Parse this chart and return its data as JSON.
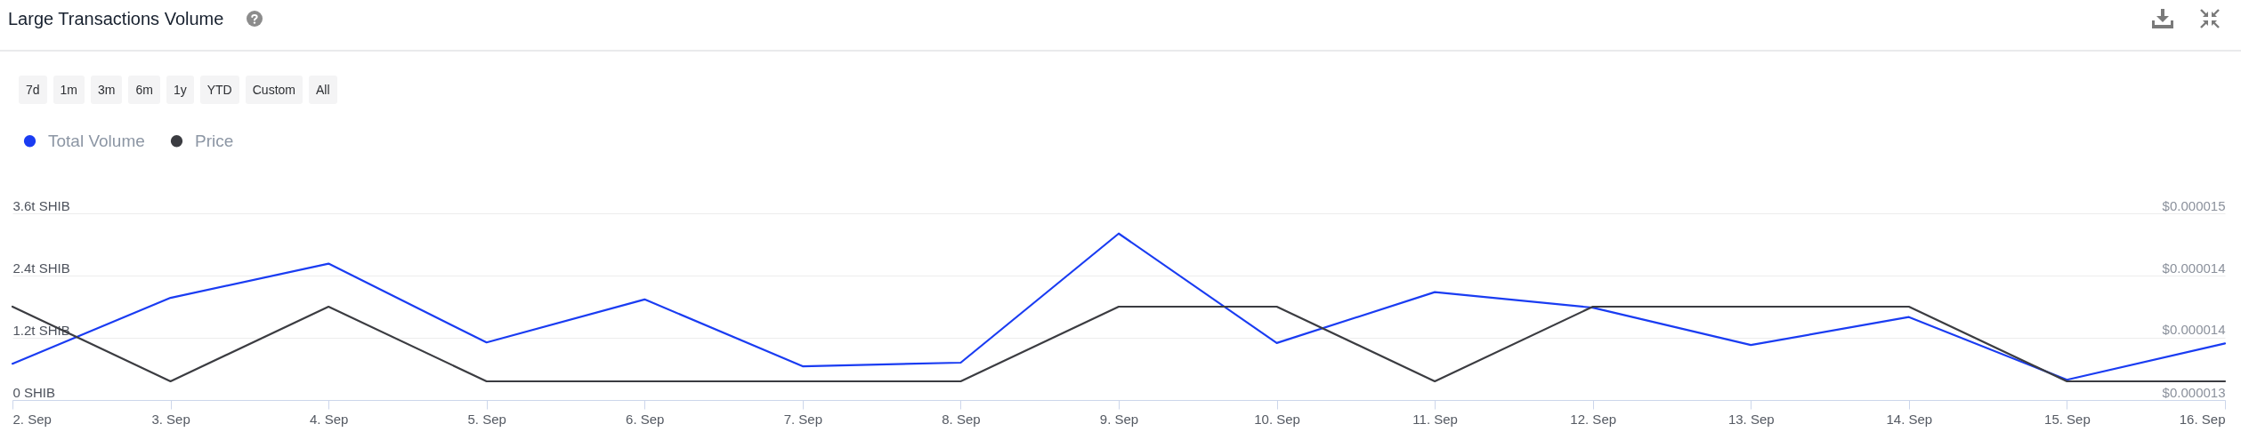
{
  "chart_data": {
    "type": "line",
    "title": "Large Transactions Volume",
    "annotations": [
      "7d",
      "1m",
      "3m",
      "6m",
      "1y",
      "YTD",
      "Custom",
      "All"
    ],
    "categories": [
      "2. Sep",
      "3. Sep",
      "4. Sep",
      "5. Sep",
      "6. Sep",
      "7. Sep",
      "8. Sep",
      "9. Sep",
      "10. Sep",
      "11. Sep",
      "12. Sep",
      "13. Sep",
      "14. Sep",
      "15. Sep",
      "16. Sep"
    ],
    "series": [
      {
        "name": "Total Volume",
        "color": "#1a3cf2",
        "values": [
          0.7,
          1.97,
          2.63,
          1.11,
          1.94,
          0.65,
          0.72,
          3.21,
          1.1,
          2.08,
          1.78,
          1.06,
          1.6,
          0.39,
          1.09
        ]
      },
      {
        "name": "Price",
        "color": "#3b3c41",
        "axis": "y2",
        "values": [
          1.4e-05,
          1.32e-05,
          1.4e-05,
          1.32e-05,
          1.32e-05,
          1.32e-05,
          1.32e-05,
          1.4e-05,
          1.4e-05,
          1.32e-05,
          1.4e-05,
          1.4e-05,
          1.4e-05,
          1.32e-05,
          1.32e-05
        ]
      }
    ],
    "ylim": [
      0,
      3.6
    ],
    "yticks": [
      {
        "value": 0,
        "label": "0 SHIB"
      },
      {
        "value": 1.2,
        "label": "1.2t SHIB"
      },
      {
        "value": 2.4,
        "label": "2.4t SHIB"
      },
      {
        "value": 3.6,
        "label": "3.6t SHIB"
      }
    ],
    "y2lim": [
      1.3e-05,
      1.5e-05
    ],
    "y2ticks": [
      {
        "value": 1.3e-05,
        "label": "$0.000013"
      },
      {
        "value": 1.36667e-05,
        "label": "$0.000014"
      },
      {
        "value": 1.43333e-05,
        "label": "$0.000014"
      },
      {
        "value": 1.5e-05,
        "label": "$0.000015"
      }
    ],
    "grid": "y",
    "legend": "top left"
  }
}
